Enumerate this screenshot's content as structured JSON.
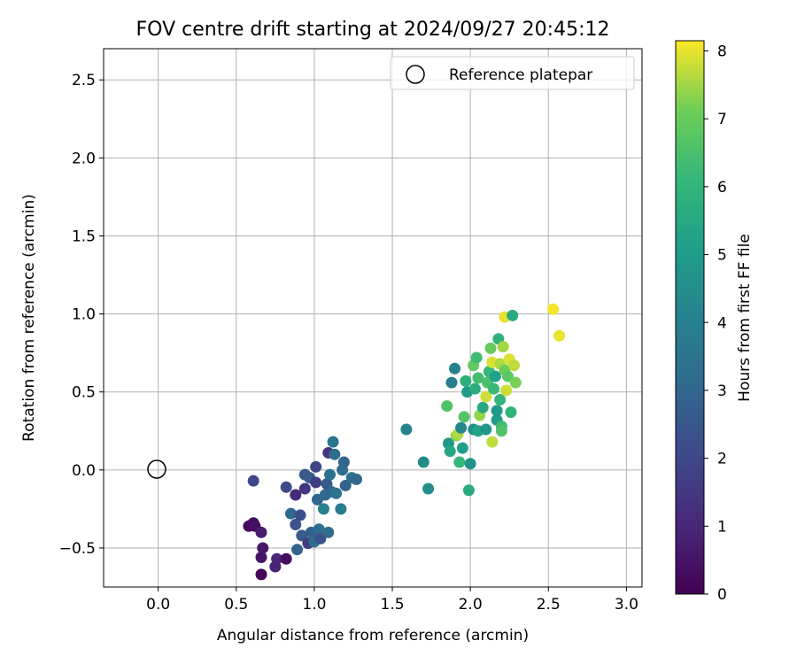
{
  "chart_data": {
    "type": "scatter",
    "title": "FOV centre drift starting at 2024/09/27 20:45:12",
    "xlabel": "Angular distance from reference (arcmin)",
    "ylabel": "Rotation from reference (arcmin)",
    "xlim": [
      -0.35,
      3.1
    ],
    "ylim": [
      -0.75,
      2.7
    ],
    "xticks": [
      "0.0",
      "0.5",
      "1.0",
      "1.5",
      "2.0",
      "2.5",
      "3.0"
    ],
    "yticks": [
      "−0.5",
      "0.0",
      "0.5",
      "1.0",
      "1.5",
      "2.0",
      "2.5"
    ],
    "grid": true,
    "legend": {
      "position": "top-right",
      "label": "Reference platepar"
    },
    "reference_point": {
      "x": 0.0,
      "y": 0.0
    },
    "colorbar": {
      "label": "Hours from first FF file",
      "min": 0,
      "max": 8.15,
      "ticks": [
        "0",
        "1",
        "2",
        "3",
        "4",
        "5",
        "6",
        "7",
        "8"
      ],
      "colormap": "viridis"
    },
    "points": [
      {
        "x": 0.58,
        "y": -0.36,
        "c": 0.2
      },
      {
        "x": 0.61,
        "y": -0.34,
        "c": 0.3
      },
      {
        "x": 0.62,
        "y": -0.36,
        "c": 0.4
      },
      {
        "x": 0.66,
        "y": -0.67,
        "c": 0.1
      },
      {
        "x": 0.66,
        "y": -0.56,
        "c": 0.5
      },
      {
        "x": 0.66,
        "y": -0.4,
        "c": 0.7
      },
      {
        "x": 0.67,
        "y": -0.5,
        "c": 0.6
      },
      {
        "x": 0.61,
        "y": -0.07,
        "c": 2.0
      },
      {
        "x": 0.75,
        "y": -0.62,
        "c": 0.9
      },
      {
        "x": 0.76,
        "y": -0.57,
        "c": 1.0
      },
      {
        "x": 0.82,
        "y": -0.57,
        "c": 0.3
      },
      {
        "x": 0.82,
        "y": -0.11,
        "c": 2.1
      },
      {
        "x": 0.85,
        "y": -0.28,
        "c": 3.1
      },
      {
        "x": 0.88,
        "y": -0.16,
        "c": 1.1
      },
      {
        "x": 0.88,
        "y": -0.35,
        "c": 2.4
      },
      {
        "x": 0.89,
        "y": -0.51,
        "c": 2.9
      },
      {
        "x": 0.91,
        "y": -0.29,
        "c": 2.2
      },
      {
        "x": 0.92,
        "y": -0.42,
        "c": 2.6
      },
      {
        "x": 0.94,
        "y": -0.03,
        "c": 2.5
      },
      {
        "x": 0.94,
        "y": -0.12,
        "c": 1.5
      },
      {
        "x": 0.96,
        "y": -0.47,
        "c": 1.6
      },
      {
        "x": 0.97,
        "y": -0.05,
        "c": 2.7
      },
      {
        "x": 0.98,
        "y": -0.4,
        "c": 2.8
      },
      {
        "x": 1.0,
        "y": -0.46,
        "c": 3.2
      },
      {
        "x": 1.01,
        "y": -0.08,
        "c": 1.7
      },
      {
        "x": 1.01,
        "y": 0.02,
        "c": 1.9
      },
      {
        "x": 1.02,
        "y": -0.19,
        "c": 3.0
      },
      {
        "x": 1.03,
        "y": -0.38,
        "c": 3.3
      },
      {
        "x": 1.04,
        "y": -0.44,
        "c": 2.3
      },
      {
        "x": 1.06,
        "y": -0.25,
        "c": 4.0
      },
      {
        "x": 1.07,
        "y": -0.16,
        "c": 3.1
      },
      {
        "x": 1.08,
        "y": -0.09,
        "c": 2.6
      },
      {
        "x": 1.09,
        "y": 0.11,
        "c": 1.4
      },
      {
        "x": 1.09,
        "y": -0.4,
        "c": 3.2
      },
      {
        "x": 1.1,
        "y": -0.03,
        "c": 3.4
      },
      {
        "x": 1.11,
        "y": -0.14,
        "c": 3.0
      },
      {
        "x": 1.12,
        "y": 0.18,
        "c": 3.6
      },
      {
        "x": 1.13,
        "y": 0.1,
        "c": 3.3
      },
      {
        "x": 1.14,
        "y": -0.15,
        "c": 3.5
      },
      {
        "x": 1.17,
        "y": -0.25,
        "c": 3.8
      },
      {
        "x": 1.18,
        "y": 0.0,
        "c": 3.2
      },
      {
        "x": 1.19,
        "y": 0.05,
        "c": 3.0
      },
      {
        "x": 1.2,
        "y": -0.1,
        "c": 2.9
      },
      {
        "x": 1.24,
        "y": -0.05,
        "c": 3.4
      },
      {
        "x": 1.27,
        "y": -0.06,
        "c": 3.1
      },
      {
        "x": 1.59,
        "y": 0.26,
        "c": 4.1
      },
      {
        "x": 1.7,
        "y": 0.05,
        "c": 4.4
      },
      {
        "x": 1.73,
        "y": -0.12,
        "c": 4.5
      },
      {
        "x": 1.85,
        "y": 0.41,
        "c": 6.6
      },
      {
        "x": 1.86,
        "y": 0.17,
        "c": 4.9
      },
      {
        "x": 1.87,
        "y": 0.12,
        "c": 5.4
      },
      {
        "x": 1.88,
        "y": 0.56,
        "c": 3.9
      },
      {
        "x": 1.9,
        "y": 0.65,
        "c": 4.0
      },
      {
        "x": 1.91,
        "y": 0.22,
        "c": 7.3
      },
      {
        "x": 1.92,
        "y": 0.23,
        "c": 7.6
      },
      {
        "x": 1.93,
        "y": 0.05,
        "c": 6.1
      },
      {
        "x": 1.94,
        "y": 0.27,
        "c": 4.2
      },
      {
        "x": 1.95,
        "y": 0.14,
        "c": 5.1
      },
      {
        "x": 1.96,
        "y": 0.34,
        "c": 6.7
      },
      {
        "x": 1.97,
        "y": 0.57,
        "c": 5.8
      },
      {
        "x": 1.98,
        "y": 0.5,
        "c": 5.0
      },
      {
        "x": 1.99,
        "y": -0.13,
        "c": 5.6
      },
      {
        "x": 2.0,
        "y": 0.04,
        "c": 4.7
      },
      {
        "x": 2.02,
        "y": 0.67,
        "c": 6.9
      },
      {
        "x": 2.02,
        "y": 0.26,
        "c": 4.6
      },
      {
        "x": 2.03,
        "y": 0.52,
        "c": 5.7
      },
      {
        "x": 2.04,
        "y": 0.72,
        "c": 6.3
      },
      {
        "x": 2.05,
        "y": 0.25,
        "c": 5.3
      },
      {
        "x": 2.05,
        "y": 0.59,
        "c": 6.4
      },
      {
        "x": 2.06,
        "y": 0.35,
        "c": 7.4
      },
      {
        "x": 2.08,
        "y": 0.4,
        "c": 5.5
      },
      {
        "x": 2.1,
        "y": 0.47,
        "c": 7.8
      },
      {
        "x": 2.1,
        "y": 0.26,
        "c": 4.8
      },
      {
        "x": 2.11,
        "y": 0.56,
        "c": 6.5
      },
      {
        "x": 2.12,
        "y": 0.63,
        "c": 6.1
      },
      {
        "x": 2.13,
        "y": 0.78,
        "c": 7.0
      },
      {
        "x": 2.14,
        "y": 0.69,
        "c": 7.9
      },
      {
        "x": 2.14,
        "y": 0.18,
        "c": 7.7
      },
      {
        "x": 2.15,
        "y": 0.52,
        "c": 6.2
      },
      {
        "x": 2.16,
        "y": 0.6,
        "c": 5.2
      },
      {
        "x": 2.17,
        "y": 0.38,
        "c": 4.9
      },
      {
        "x": 2.17,
        "y": 0.32,
        "c": 5.0
      },
      {
        "x": 2.18,
        "y": 0.84,
        "c": 5.9
      },
      {
        "x": 2.19,
        "y": 0.45,
        "c": 6.0
      },
      {
        "x": 2.19,
        "y": 0.68,
        "c": 7.6
      },
      {
        "x": 2.2,
        "y": 0.28,
        "c": 6.3
      },
      {
        "x": 2.2,
        "y": 0.25,
        "c": 6.6
      },
      {
        "x": 2.21,
        "y": 0.79,
        "c": 7.5
      },
      {
        "x": 2.22,
        "y": 0.98,
        "c": 8.0
      },
      {
        "x": 2.22,
        "y": 0.64,
        "c": 7.1
      },
      {
        "x": 2.23,
        "y": 0.51,
        "c": 7.8
      },
      {
        "x": 2.24,
        "y": 0.6,
        "c": 6.8
      },
      {
        "x": 2.25,
        "y": 0.71,
        "c": 7.9
      },
      {
        "x": 2.26,
        "y": 0.37,
        "c": 5.9
      },
      {
        "x": 2.27,
        "y": 0.99,
        "c": 5.6
      },
      {
        "x": 2.28,
        "y": 0.67,
        "c": 7.7
      },
      {
        "x": 2.29,
        "y": 0.56,
        "c": 7.2
      },
      {
        "x": 2.53,
        "y": 1.03,
        "c": 8.1
      },
      {
        "x": 2.57,
        "y": 0.86,
        "c": 8.0
      }
    ]
  }
}
